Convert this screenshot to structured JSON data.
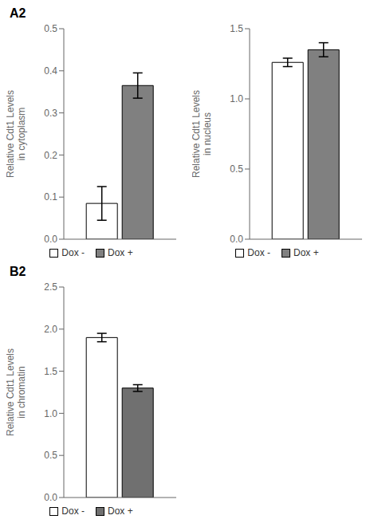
{
  "chart_data": [
    {
      "type": "bar",
      "title": "A2",
      "ylabel": "Relative Cdt1 Levels\nin cytoplasm",
      "categories": [
        null
      ],
      "series": [
        {
          "name": "Dox -",
          "color": "white",
          "values": [
            0.085
          ],
          "errors": [
            0.04
          ]
        },
        {
          "name": "Dox +",
          "color": "#808080",
          "values": [
            0.365
          ],
          "errors": [
            0.03
          ]
        }
      ],
      "ylim": [
        0,
        0.5
      ],
      "yticks": [
        {
          "value": 0,
          "label": "0.0"
        },
        0.1,
        0.2,
        0.3,
        0.4,
        0.5
      ],
      "grid": false,
      "legend": "bottom",
      "tick_labels": "y"
    },
    {
      "type": "bar",
      "ylabel": "Relative Cdt1 Levels\nin nucleus",
      "categories": [
        null
      ],
      "series": [
        {
          "name": "Dox -",
          "color": "white",
          "values": [
            1.26
          ],
          "errors": [
            0.03
          ]
        },
        {
          "name": "Dox +",
          "color": "#808080",
          "values": [
            1.35
          ],
          "errors": [
            0.05
          ]
        }
      ],
      "ylim": [
        0,
        1.5
      ],
      "yticks": [
        {
          "value": 0,
          "label": "0.0"
        },
        0.5,
        {
          "value": 1,
          "label": "1.0"
        },
        1.5
      ],
      "grid": false,
      "legend": "bottom",
      "tick_labels": "y"
    },
    {
      "type": "bar",
      "title": "B2",
      "ylabel": "Relative Cdt1 Levels\nin chromatin",
      "categories": [
        null
      ],
      "series": [
        {
          "name": "Dox -",
          "color": "white",
          "values": [
            1.9
          ],
          "errors": [
            0.05
          ]
        },
        {
          "name": "Dox +",
          "color": "#707070",
          "values": [
            1.3
          ],
          "errors": [
            0.04
          ]
        }
      ],
      "ylim": [
        0,
        2.5
      ],
      "yticks": [
        {
          "value": 0,
          "label": "0.0"
        },
        0.5,
        {
          "value": 1,
          "label": "1.0"
        },
        1.5,
        {
          "value": 2,
          "label": "2.0"
        },
        2.5
      ],
      "grid": false,
      "legend": "bottom",
      "tick_labels": "y"
    }
  ]
}
